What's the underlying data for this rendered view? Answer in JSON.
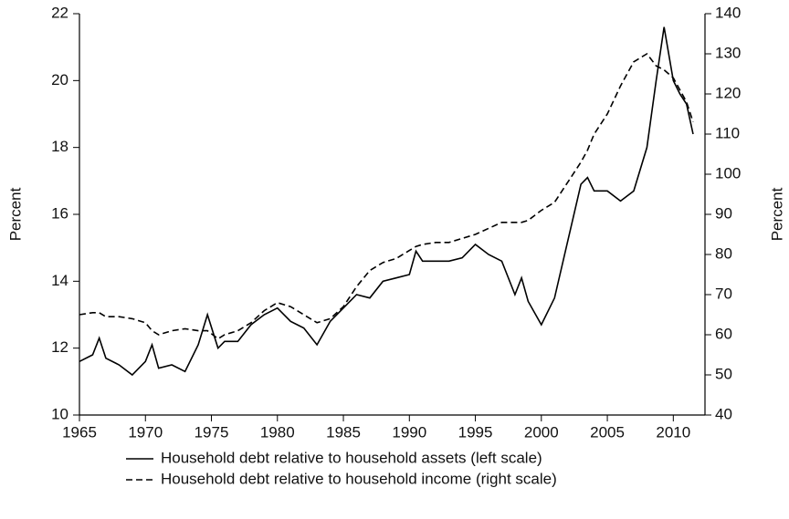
{
  "chart_data": {
    "type": "line",
    "y_label": "Percent",
    "y2_label": "Percent",
    "x": [
      1965,
      1966,
      1966.5,
      1967,
      1968,
      1969,
      1970,
      1970.5,
      1971,
      1972,
      1973,
      1974,
      1974.7,
      1975.5,
      1976,
      1977,
      1978,
      1979,
      1980,
      1981,
      1982,
      1983,
      1984,
      1985,
      1986,
      1987,
      1988,
      1989,
      1990,
      1990.5,
      1991,
      1992,
      1993,
      1994,
      1995,
      1996,
      1997,
      1998,
      1998.5,
      1999,
      2000,
      2001,
      2002,
      2003,
      2003.5,
      2004,
      2005,
      2006,
      2007,
      2008,
      2008.7,
      2009.3,
      2010,
      2010.5,
      2011,
      2011.5
    ],
    "series": [
      {
        "name": "Household debt relative to household assets (left scale)",
        "color": "#000000",
        "dashed": false,
        "axis": "y",
        "values": [
          11.6,
          11.8,
          12.3,
          11.7,
          11.5,
          11.2,
          11.6,
          12.1,
          11.4,
          11.5,
          11.3,
          12.1,
          13.0,
          12.0,
          12.2,
          12.2,
          12.7,
          13.0,
          13.2,
          12.8,
          12.6,
          12.1,
          12.8,
          13.2,
          13.6,
          13.5,
          14.0,
          14.1,
          14.2,
          14.9,
          14.6,
          14.6,
          14.6,
          14.7,
          15.1,
          14.8,
          14.6,
          13.6,
          14.1,
          13.4,
          12.7,
          13.5,
          15.2,
          16.9,
          17.1,
          16.7,
          16.7,
          16.4,
          16.7,
          18.0,
          20.0,
          21.6,
          20.0,
          19.6,
          19.3,
          18.4
        ]
      },
      {
        "name": "Household debt relative to household income (right scale)",
        "color": "#000000",
        "dashed": true,
        "axis": "y2",
        "values": [
          65,
          65.5,
          65.5,
          64.5,
          64.5,
          64,
          63,
          61,
          60,
          61,
          61.5,
          61,
          61,
          59,
          60,
          61,
          63,
          66,
          68,
          67,
          65,
          63,
          64,
          67,
          72,
          76,
          78,
          79,
          81,
          82,
          82.5,
          83,
          83,
          84,
          85,
          86.5,
          88,
          88,
          88,
          88.5,
          91,
          93,
          98,
          103,
          106,
          110,
          115,
          122,
          128,
          130,
          127,
          126,
          124,
          121,
          118,
          113
        ]
      }
    ],
    "xlim": [
      1965,
      2012.4
    ],
    "xticks": [
      1965,
      1970,
      1975,
      1980,
      1985,
      1990,
      1995,
      2000,
      2005,
      2010
    ],
    "ylim": [
      10,
      22
    ],
    "yticks": [
      10,
      12,
      14,
      16,
      18,
      20,
      22
    ],
    "y2lim": [
      40,
      140
    ],
    "y2ticks": [
      40,
      50,
      60,
      70,
      80,
      90,
      100,
      110,
      120,
      130,
      140
    ],
    "grid": false
  }
}
